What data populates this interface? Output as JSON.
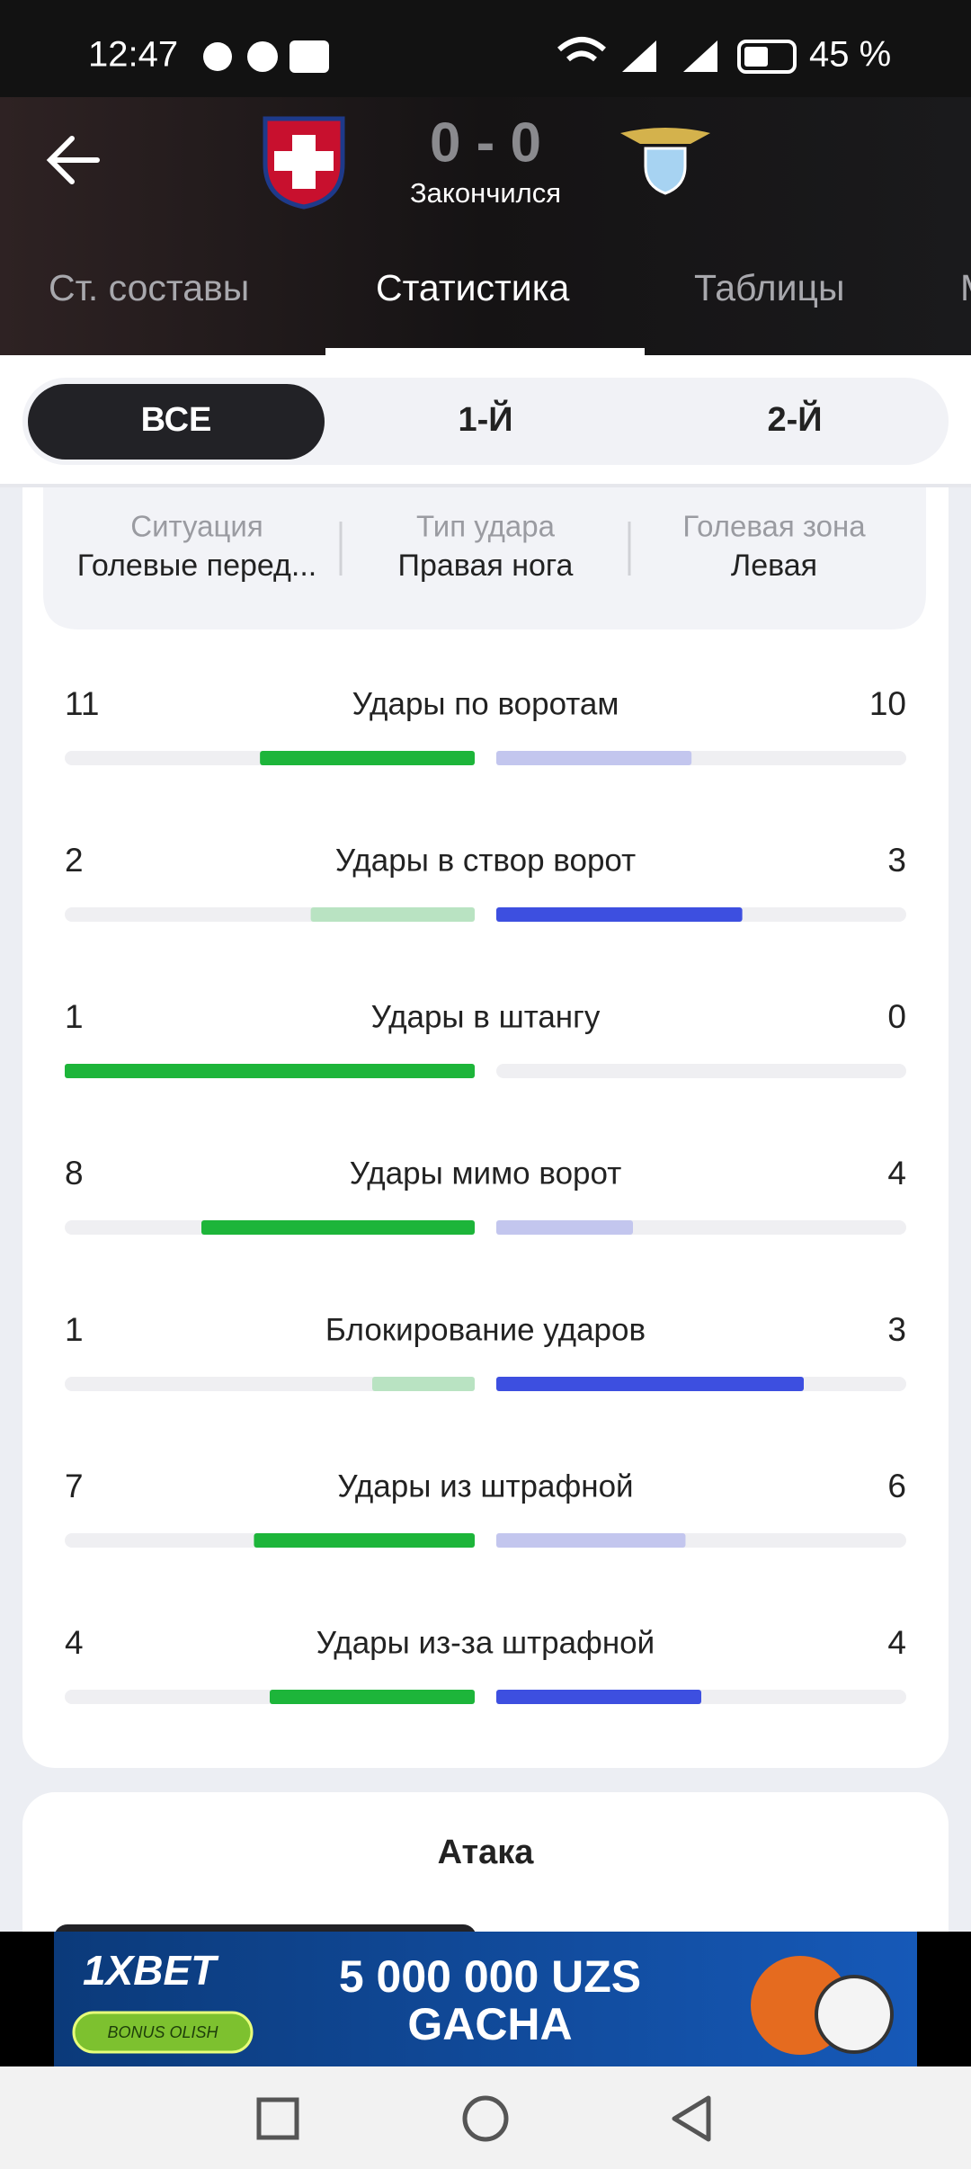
{
  "status_bar": {
    "time": "12:47",
    "battery": "45 %"
  },
  "match": {
    "score": "0 - 0",
    "status": "Закончился"
  },
  "tabs": [
    "Ст. составы",
    "Статистика",
    "Таблицы",
    "М"
  ],
  "periods": [
    "ВСЕ",
    "1-Й",
    "2-Й"
  ],
  "filters": [
    {
      "label": "Ситуация",
      "value": "Голевые перед..."
    },
    {
      "label": "Тип удара",
      "value": "Правая нога"
    },
    {
      "label": "Голевая зона",
      "value": "Левая"
    }
  ],
  "stats": [
    {
      "name": "Удары по воротам",
      "home": 11,
      "away": 10
    },
    {
      "name": "Удары в створ ворот",
      "home": 2,
      "away": 3
    },
    {
      "name": "Удары в штангу",
      "home": 1,
      "away": 0
    },
    {
      "name": "Удары мимо ворот",
      "home": 8,
      "away": 4
    },
    {
      "name": "Блокирование ударов",
      "home": 1,
      "away": 3
    },
    {
      "name": "Удары из штрафной",
      "home": 7,
      "away": 6
    },
    {
      "name": "Удары из-за штрафной",
      "home": 4,
      "away": 4
    }
  ],
  "next_section": "Атака",
  "ad": {
    "brand": "1XBET",
    "button": "BONUS OLISH",
    "line1": "5 000 000 UZS",
    "line2": "GACHA"
  }
}
